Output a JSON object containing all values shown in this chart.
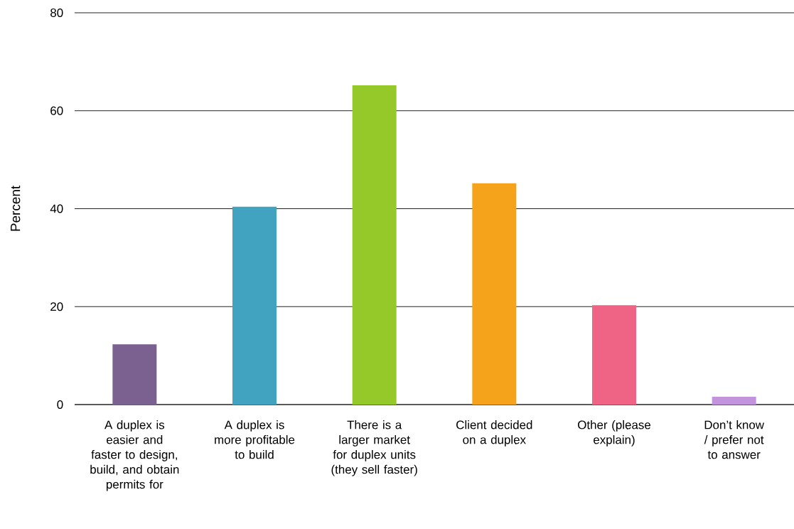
{
  "chart_data": {
    "type": "bar",
    "ylabel": "Percent",
    "categories": [
      "A duplex is easier and faster to design, build, and obtain permits for",
      "A duplex is more profitable to build",
      "There is a larger market for duplex units (they sell faster)",
      "Client decided on a duplex",
      "Other (please explain)",
      "Don’t know / prefer not to answer"
    ],
    "values": [
      12.3,
      40.4,
      65.2,
      45.2,
      20.3,
      1.6
    ],
    "colors": [
      "#7b6190",
      "#42a3c1",
      "#95c92a",
      "#f4a31b",
      "#ef6385",
      "#c394dd"
    ],
    "ylim": [
      0,
      80
    ],
    "yticks": [
      0,
      20,
      40,
      60,
      80
    ],
    "grid": "y"
  }
}
